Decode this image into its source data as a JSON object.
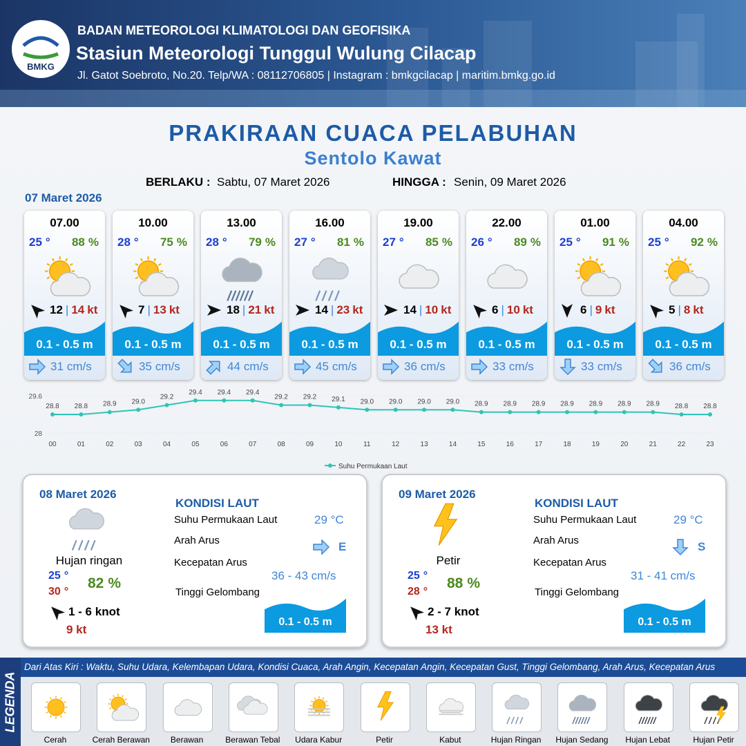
{
  "header": {
    "logo": "BMKG",
    "agency": "BADAN METEOROLOGI KLIMATOLOGI DAN GEOFISIKA",
    "station": "Stasiun Meteorologi Tunggul Wulung Cilacap",
    "address": "Jl. Gatot Soebroto, No.20. Telp/WA : 08112706805 | Instagram : bmkgcilacap | maritim.bmkg.go.id"
  },
  "title": "PRAKIRAAN CUACA PELABUHAN",
  "subtitle": "Sentolo Kawat",
  "validity": {
    "from_label": "BERLAKU :",
    "from": "Sabtu, 07 Maret 2026",
    "to_label": "HINGGA :",
    "to": "Senin, 09 Maret 2026"
  },
  "units": {
    "temp": "°",
    "humidity": "%",
    "gust": "kt",
    "current": "cm/s",
    "separator": "|"
  },
  "day1": {
    "date": "07 Maret 2026",
    "slots": [
      {
        "time": "07.00",
        "temp": 25,
        "humidity": 88,
        "wind": 12,
        "gust": 14,
        "wave": "0.1 - 0.5 m",
        "current": 31
      },
      {
        "time": "10.00",
        "temp": 28,
        "humidity": 75,
        "wind": 7,
        "gust": 13,
        "wave": "0.1 - 0.5 m",
        "current": 35
      },
      {
        "time": "13.00",
        "temp": 28,
        "humidity": 79,
        "wind": 18,
        "gust": 21,
        "wave": "0.1 - 0.5 m",
        "current": 44
      },
      {
        "time": "16.00",
        "temp": 27,
        "humidity": 81,
        "wind": 14,
        "gust": 23,
        "wave": "0.1 - 0.5 m",
        "current": 45
      },
      {
        "time": "19.00",
        "temp": 27,
        "humidity": 85,
        "wind": 14,
        "gust": 10,
        "wave": "0.1 - 0.5 m",
        "current": 36
      },
      {
        "time": "22.00",
        "temp": 26,
        "humidity": 89,
        "wind": 6,
        "gust": 10,
        "wave": "0.1 - 0.5 m",
        "current": 33
      },
      {
        "time": "01.00",
        "temp": 25,
        "humidity": 91,
        "wind": 6,
        "gust": 9,
        "wave": "0.1 - 0.5 m",
        "current": 33
      },
      {
        "time": "04.00",
        "temp": 25,
        "humidity": 92,
        "wind": 5,
        "gust": 8,
        "wave": "0.1 - 0.5 m",
        "current": 36
      }
    ]
  },
  "chart_data": {
    "type": "line",
    "categories": [
      "00",
      "01",
      "02",
      "03",
      "04",
      "05",
      "06",
      "07",
      "08",
      "09",
      "10",
      "11",
      "12",
      "13",
      "14",
      "15",
      "16",
      "17",
      "18",
      "19",
      "20",
      "21",
      "22",
      "23"
    ],
    "series": [
      {
        "name": "Suhu Permukaan Laut",
        "color": "#2ec4b6",
        "values": [
          28.8,
          28.8,
          28.9,
          29.0,
          29.2,
          29.4,
          29.4,
          29.4,
          29.2,
          29.2,
          29.1,
          29.0,
          29.0,
          29.0,
          29.0,
          28.9,
          28.9,
          28.9,
          28.9,
          28.9,
          28.9,
          28.9,
          28.8,
          28.8
        ],
        "value_labels": [
          "28.8",
          "28.8",
          "28.9",
          "29.0",
          "29.2",
          "29.4",
          "29.4",
          "29.4",
          "29.2",
          "29.2",
          "29.1",
          "29.0",
          "29.0",
          "29.0",
          "29.0",
          "28.9",
          "28.9",
          "28.9",
          "28.9",
          "28.9",
          "28.9",
          "28.9",
          "28.8",
          "28.8"
        ]
      }
    ],
    "ylim": [
      28,
      29.6
    ],
    "yticks": [
      28,
      29.6
    ],
    "legend": "bottom"
  },
  "day_panels": [
    {
      "date": "08 Maret 2026",
      "condition": "Hujan ringan",
      "temp_min": 25,
      "temp_max": 30,
      "humidity": 82,
      "wind": "1 - 6 knot",
      "gust": "9 kt",
      "sea": {
        "title": "KONDISI LAUT",
        "sst_label": "Suhu Permukaan Laut",
        "sst": "29 °C",
        "dir_label": "Arah Arus",
        "dir": "E",
        "speed_label": "Kecepatan Arus",
        "speed": "36 - 43 cm/s",
        "wave_label": "Tinggi Gelombang",
        "wave": "0.1 - 0.5 m"
      }
    },
    {
      "date": "09 Maret 2026",
      "condition": "Petir",
      "temp_min": 25,
      "temp_max": 28,
      "humidity": 88,
      "wind": "2 - 7 knot",
      "gust": "13 kt",
      "sea": {
        "title": "KONDISI LAUT",
        "sst_label": "Suhu Permukaan Laut",
        "sst": "29 °C",
        "dir_label": "Arah Arus",
        "dir": "S",
        "speed_label": "Kecepatan Arus",
        "speed": "31 - 41 cm/s",
        "wave_label": "Tinggi Gelombang",
        "wave": "0.1 - 0.5 m"
      }
    }
  ],
  "legend": {
    "title": "LEGENDA",
    "description": "Dari Atas Kiri : Waktu, Suhu Udara, Kelembapan Udara, Kondisi Cuaca, Arah Angin, Kecepatan Angin, Kecepatan Gust, Tinggi Gelombang, Arah Arus, Kecepatan Arus",
    "items": [
      "Cerah",
      "Cerah Berawan",
      "Berawan",
      "Berawan Tebal",
      "Udara Kabur",
      "Petir",
      "Kabut",
      "Hujan Ringan",
      "Hujan Sedang",
      "Hujan Lebat",
      "Hujan Petir"
    ]
  }
}
